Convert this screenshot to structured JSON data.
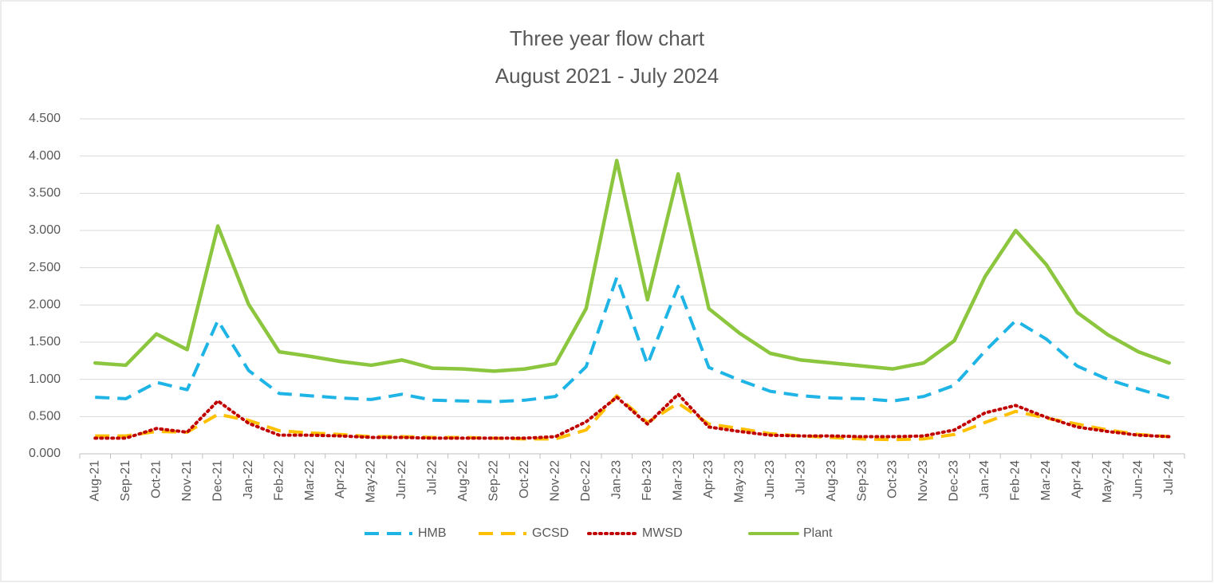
{
  "chart_data": {
    "type": "line",
    "title": "Three year flow chart",
    "subtitle": "August 2021 - July 2024",
    "categories": [
      "Aug-21",
      "Sep-21",
      "Oct-21",
      "Nov-21",
      "Dec-21",
      "Jan-22",
      "Feb-22",
      "Mar-22",
      "Apr-22",
      "May-22",
      "Jun-22",
      "Jul-22",
      "Aug-22",
      "Sep-22",
      "Oct-22",
      "Nov-22",
      "Dec-22",
      "Jan-23",
      "Feb-23",
      "Mar-23",
      "Apr-23",
      "May-23",
      "Jun-23",
      "Jul-23",
      "Aug-23",
      "Sep-23",
      "Oct-23",
      "Nov-23",
      "Dec-23",
      "Jan-24",
      "Feb-24",
      "Mar-24",
      "Apr-24",
      "May-24",
      "Jun-24",
      "Jul-24"
    ],
    "series": [
      {
        "name": "HMB",
        "color": "#1fb4e6",
        "dash": "dashed",
        "values": [
          0.76,
          0.74,
          0.96,
          0.86,
          1.79,
          1.12,
          0.81,
          0.78,
          0.75,
          0.73,
          0.8,
          0.72,
          0.71,
          0.7,
          0.72,
          0.77,
          1.17,
          2.37,
          1.2,
          2.25,
          1.16,
          0.99,
          0.84,
          0.78,
          0.75,
          0.74,
          0.71,
          0.77,
          0.92,
          1.38,
          1.79,
          1.54,
          1.18,
          1.0,
          0.87,
          0.75
        ]
      },
      {
        "name": "GCSD",
        "color": "#ffc000",
        "dash": "dashed",
        "values": [
          0.24,
          0.24,
          0.3,
          0.29,
          0.53,
          0.45,
          0.31,
          0.28,
          0.26,
          0.23,
          0.23,
          0.22,
          0.22,
          0.21,
          0.2,
          0.2,
          0.32,
          0.78,
          0.42,
          0.68,
          0.4,
          0.34,
          0.27,
          0.24,
          0.22,
          0.2,
          0.19,
          0.2,
          0.26,
          0.42,
          0.57,
          0.48,
          0.4,
          0.32,
          0.26,
          0.23
        ]
      },
      {
        "name": "MWSD",
        "color": "#c00000",
        "dash": "dotted",
        "values": [
          0.21,
          0.21,
          0.34,
          0.29,
          0.71,
          0.41,
          0.25,
          0.25,
          0.24,
          0.22,
          0.22,
          0.21,
          0.21,
          0.21,
          0.21,
          0.23,
          0.43,
          0.76,
          0.4,
          0.8,
          0.36,
          0.3,
          0.25,
          0.24,
          0.24,
          0.23,
          0.23,
          0.24,
          0.32,
          0.55,
          0.65,
          0.49,
          0.36,
          0.3,
          0.25,
          0.23
        ]
      },
      {
        "name": "Plant",
        "color": "#8cc63f",
        "dash": "solid",
        "values": [
          1.22,
          1.19,
          1.61,
          1.4,
          3.06,
          2.01,
          1.37,
          1.31,
          1.24,
          1.19,
          1.26,
          1.15,
          1.14,
          1.11,
          1.14,
          1.21,
          1.95,
          3.94,
          2.07,
          3.76,
          1.95,
          1.62,
          1.35,
          1.26,
          1.22,
          1.18,
          1.14,
          1.22,
          1.52,
          2.38,
          3.0,
          2.54,
          1.9,
          1.6,
          1.37,
          1.22
        ]
      }
    ],
    "ylim": [
      0,
      4.5
    ],
    "yticks": [
      {
        "value": 0,
        "label": "0.000"
      },
      {
        "value": 0.5,
        "label": "0.500"
      },
      {
        "value": 1,
        "label": "1.000"
      },
      {
        "value": 1.5,
        "label": "1.500"
      },
      {
        "value": 2,
        "label": "2.000"
      },
      {
        "value": 2.5,
        "label": "2.500"
      },
      {
        "value": 3,
        "label": "3.000"
      },
      {
        "value": 3.5,
        "label": "3.500"
      },
      {
        "value": 4,
        "label": "4.000"
      },
      {
        "value": 4.5,
        "label": "4.500"
      }
    ],
    "grid": true,
    "legend": "bottom"
  }
}
